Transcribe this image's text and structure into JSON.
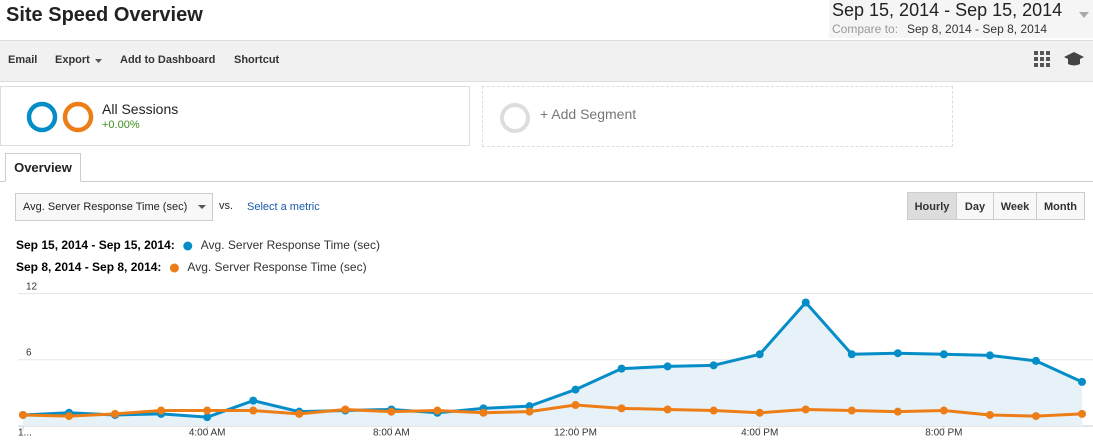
{
  "header": {
    "title": "Site Speed Overview",
    "date_range": "Sep 15, 2014 - Sep 15, 2014",
    "compare_label": "Compare to:",
    "compare_range": "Sep 8, 2014 - Sep 8, 2014"
  },
  "toolbar": [
    "Email",
    "Export",
    "Add to Dashboard",
    "Shortcut"
  ],
  "segments": {
    "name": "All Sessions",
    "change": "+0.00%",
    "add": "+ Add Segment"
  },
  "tab": "Overview",
  "metric_select": "Avg. Server Response Time (sec)",
  "vs": "vs.",
  "select_metric": "Select a metric",
  "granularity": [
    "Hourly",
    "Day",
    "Week",
    "Month"
  ],
  "chart_data": {
    "type": "line",
    "categories": [
      "1...",
      null,
      null,
      null,
      "4:00 AM",
      null,
      null,
      null,
      "8:00 AM",
      null,
      null,
      null,
      "12:00 PM",
      null,
      null,
      null,
      "4:00 PM",
      null,
      null,
      null,
      "8:00 PM",
      null,
      null,
      null
    ],
    "series": [
      {
        "period": "Sep 15, 2014 - Sep 15, 2014:",
        "name": "Avg. Server Response Time (sec)",
        "color": "#058dc7",
        "area": "#e6f2f8",
        "values": [
          1.0,
          1.2,
          1.0,
          1.1,
          0.8,
          2.3,
          1.3,
          1.4,
          1.5,
          1.2,
          1.6,
          1.8,
          3.3,
          5.2,
          5.4,
          5.5,
          6.5,
          11.2,
          6.5,
          6.6,
          6.5,
          6.4,
          5.9,
          4.0
        ]
      },
      {
        "period": "Sep 8, 2014 - Sep 8, 2014:",
        "name": "Avg. Server Response Time (sec)",
        "color": "#ed7e17",
        "values": [
          1.0,
          0.9,
          1.1,
          1.4,
          1.4,
          1.4,
          1.1,
          1.5,
          1.3,
          1.4,
          1.2,
          1.3,
          1.9,
          1.6,
          1.5,
          1.4,
          1.2,
          1.5,
          1.4,
          1.3,
          1.4,
          1.0,
          0.9,
          1.1
        ]
      }
    ],
    "ylim": [
      0,
      12.6
    ],
    "yticks": [
      6,
      12
    ],
    "grid": true
  }
}
